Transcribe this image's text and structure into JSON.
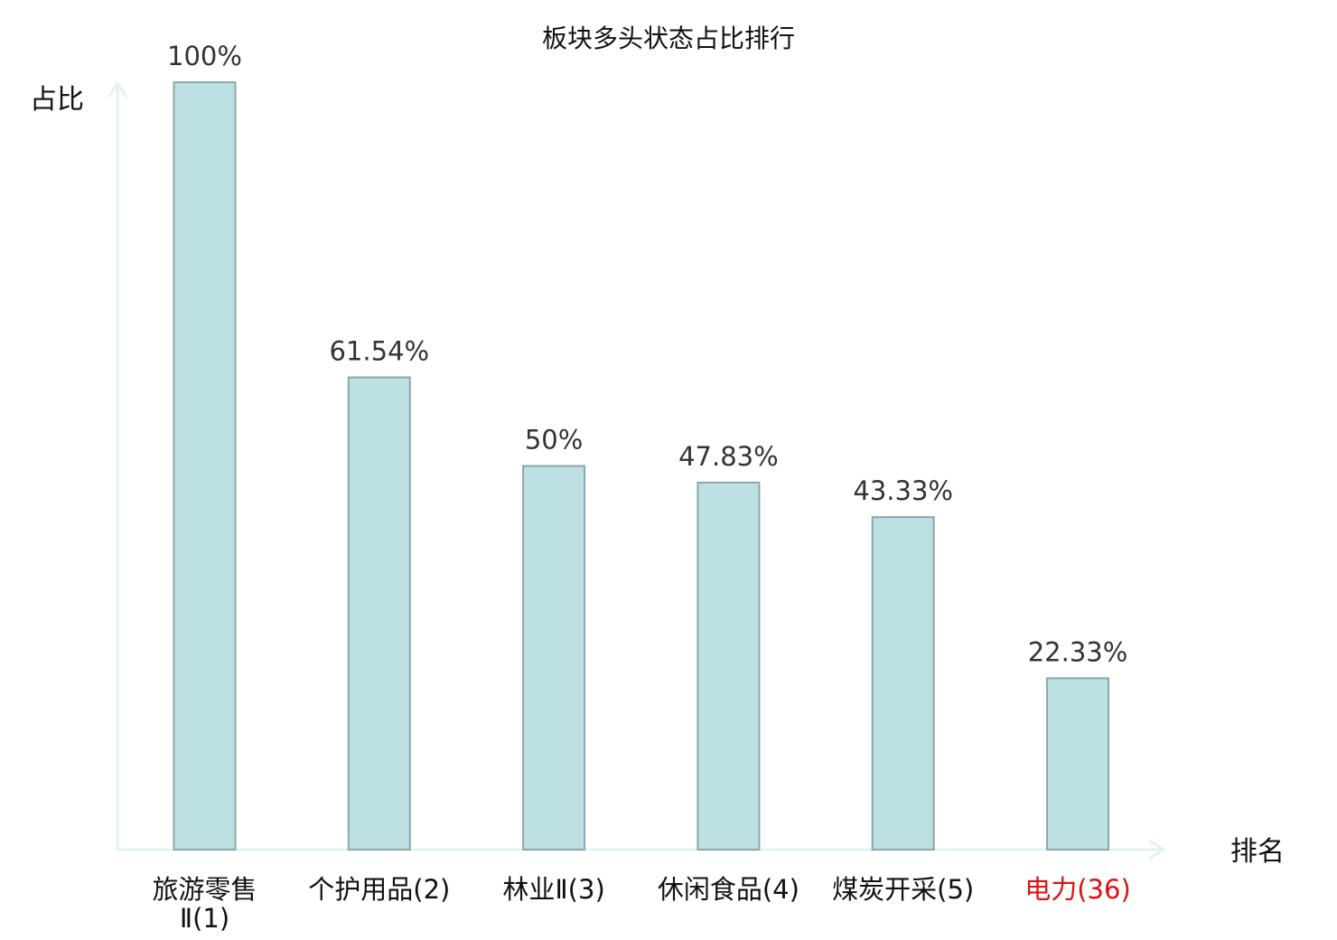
{
  "chart_data": {
    "type": "bar",
    "title": "板块多头状态占比排行",
    "ylabel": "占比",
    "xlabel": "排名",
    "ylim": [
      0,
      100
    ],
    "grid": false,
    "highlight_color": "#dd1111",
    "bar_color": "#bde0e3",
    "categories": [
      {
        "lines": [
          "旅游零售",
          "Ⅱ(1)"
        ],
        "value": 100,
        "label": "100%",
        "highlight": false
      },
      {
        "lines": [
          "个护用品(2)"
        ],
        "value": 61.54,
        "label": "61.54%",
        "highlight": false
      },
      {
        "lines": [
          "林业Ⅱ(3)"
        ],
        "value": 50,
        "label": "50%",
        "highlight": false
      },
      {
        "lines": [
          "休闲食品(4)"
        ],
        "value": 47.83,
        "label": "47.83%",
        "highlight": false
      },
      {
        "lines": [
          "煤炭开采(5)"
        ],
        "value": 43.33,
        "label": "43.33%",
        "highlight": false
      },
      {
        "lines": [
          "电力(36)"
        ],
        "value": 22.33,
        "label": "22.33%",
        "highlight": true
      }
    ]
  }
}
